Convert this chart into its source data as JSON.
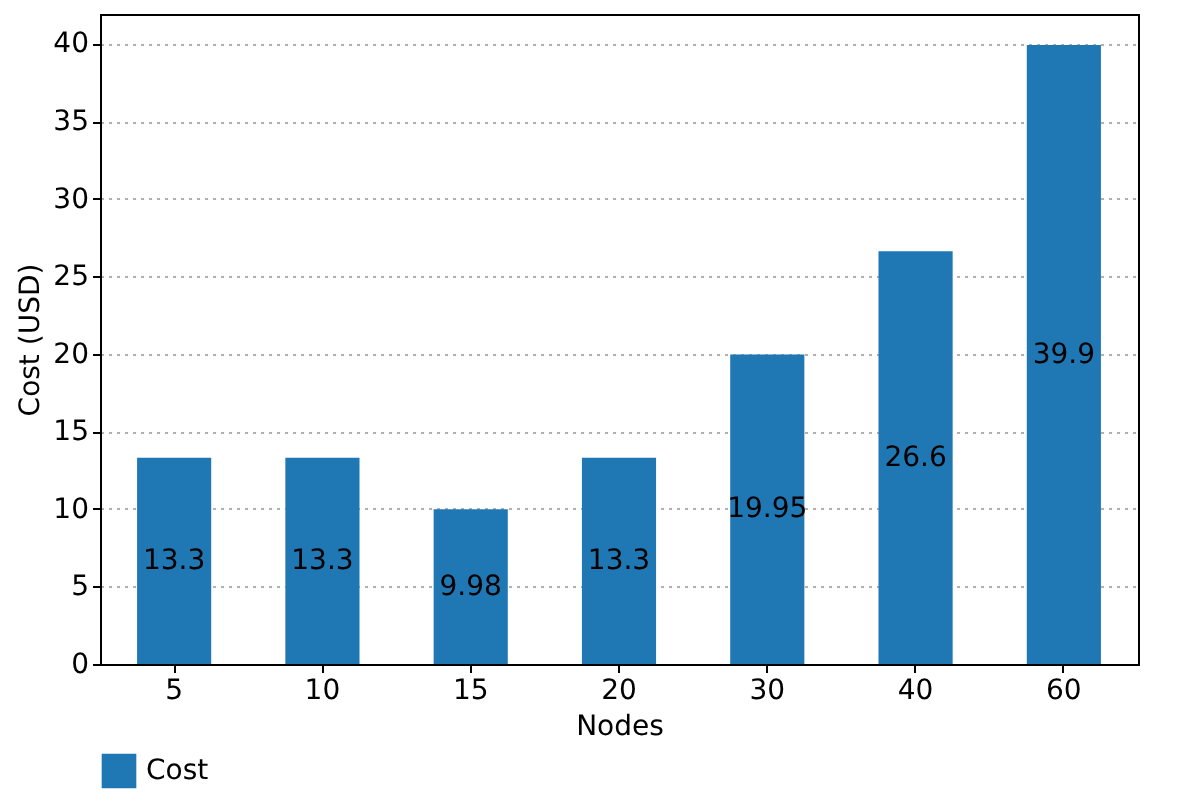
{
  "chart_data": {
    "type": "bar",
    "xlabel": "Nodes",
    "ylabel": "Cost (USD)",
    "categories": [
      "5",
      "10",
      "15",
      "20",
      "30",
      "40",
      "60"
    ],
    "series": [
      {
        "name": "Cost",
        "color": "#1f77b4",
        "values": [
          13.3,
          13.3,
          9.98,
          13.3,
          19.95,
          26.6,
          39.9
        ]
      }
    ],
    "ylim": [
      0,
      41.9
    ],
    "yticks": [
      0,
      5,
      10,
      15,
      20,
      25,
      30,
      35,
      40
    ],
    "grid": "y",
    "legend": "bottom",
    "data_labels": true
  }
}
